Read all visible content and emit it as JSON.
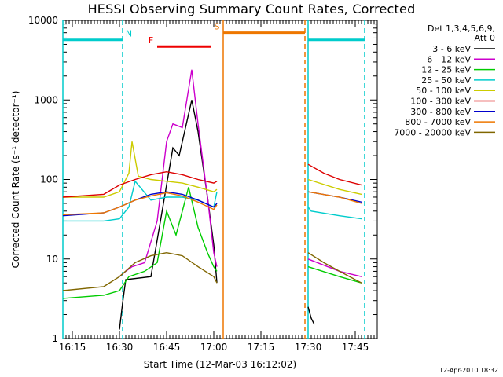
{
  "chart_data": {
    "type": "line",
    "title": "HESSI Observing Summary Count Rates, Corrected",
    "xlabel": "Start Time (12-Mar-03 16:12:02)",
    "ylabel": "Corrected Count Rate (s⁻¹ detector⁻¹)",
    "y_scale": "log",
    "ylim": [
      1,
      10000
    ],
    "xlim": [
      "16:12",
      "17:52"
    ],
    "x_ticks": [
      "16:15",
      "16:30",
      "16:45",
      "17:00",
      "17:15",
      "17:30",
      "17:45"
    ],
    "y_ticks": [
      "1",
      "10",
      "100",
      "1000",
      "10000"
    ],
    "grid": false,
    "legend_header": [
      "Det 1,3,4,5,6,9,",
      "Att 0"
    ],
    "legend_position": "top-right",
    "series": [
      {
        "name": "3 - 6 keV",
        "color": "#000000",
        "x": [
          "16:30",
          "16:31",
          "16:32",
          "16:40",
          "16:44",
          "16:47",
          "16:49",
          "16:53",
          "16:55",
          "16:58",
          "17:00",
          "17:01",
          "17:30",
          "17:31",
          "17:32"
        ],
        "y": [
          1.3,
          2.8,
          5.5,
          6,
          50,
          250,
          200,
          1000,
          400,
          60,
          15,
          5,
          2.5,
          1.8,
          1.5
        ]
      },
      {
        "name": "6 - 12 keV",
        "color": "#cc00cc",
        "x": [
          "16:30",
          "16:32",
          "16:34",
          "16:38",
          "16:42",
          "16:45",
          "16:47",
          "16:50",
          "16:53",
          "16:55",
          "16:58",
          "17:00",
          "17:01",
          "17:30",
          "17:40",
          "17:47"
        ],
        "y": [
          6,
          7,
          8,
          9,
          30,
          300,
          500,
          450,
          2400,
          500,
          60,
          12,
          8,
          10,
          7,
          6
        ]
      },
      {
        "name": "12 - 25 keV",
        "color": "#00cc00",
        "x": [
          "16:12",
          "16:25",
          "16:30",
          "16:33",
          "16:38",
          "16:42",
          "16:45",
          "16:48",
          "16:50",
          "16:52",
          "16:55",
          "16:58",
          "17:00",
          "17:01",
          "17:30",
          "17:40",
          "17:47"
        ],
        "y": [
          3.2,
          3.5,
          4,
          6,
          7,
          9,
          40,
          20,
          40,
          80,
          25,
          12,
          8,
          7,
          8,
          6,
          5
        ]
      },
      {
        "name": "25 - 50 keV",
        "color": "#00cccc",
        "x": [
          "16:12",
          "16:25",
          "16:30",
          "16:33",
          "16:35",
          "16:40",
          "16:45",
          "16:50",
          "16:55",
          "17:00",
          "17:01",
          "17:30",
          "17:31",
          "17:40",
          "17:47"
        ],
        "y": [
          30,
          30,
          32,
          45,
          95,
          55,
          60,
          60,
          55,
          45,
          70,
          45,
          40,
          35,
          32
        ]
      },
      {
        "name": "50 - 100 keV",
        "color": "#cccc00",
        "x": [
          "16:12",
          "16:25",
          "16:30",
          "16:33",
          "16:34",
          "16:36",
          "16:40",
          "16:45",
          "16:50",
          "16:55",
          "17:00",
          "17:01",
          "17:30",
          "17:40",
          "17:47"
        ],
        "y": [
          60,
          60,
          70,
          120,
          300,
          110,
          100,
          95,
          90,
          80,
          70,
          75,
          100,
          75,
          65
        ]
      },
      {
        "name": "100 - 300 keV",
        "color": "#dd0000",
        "x": [
          "16:12",
          "16:25",
          "16:30",
          "16:35",
          "16:40",
          "16:45",
          "16:50",
          "16:55",
          "17:00",
          "17:01",
          "17:30",
          "17:35",
          "17:40",
          "17:47"
        ],
        "y": [
          60,
          65,
          85,
          100,
          115,
          125,
          115,
          100,
          90,
          95,
          155,
          120,
          100,
          85
        ]
      },
      {
        "name": "300 - 800 keV",
        "color": "#0000cc",
        "x": [
          "16:12",
          "16:25",
          "16:30",
          "16:35",
          "16:40",
          "16:45",
          "16:50",
          "16:55",
          "17:00",
          "17:01",
          "17:30",
          "17:40",
          "17:47"
        ],
        "y": [
          35,
          38,
          45,
          55,
          65,
          70,
          65,
          55,
          45,
          50,
          70,
          60,
          52
        ]
      },
      {
        "name": "800 - 7000 keV",
        "color": "#ee7700",
        "x": [
          "16:12",
          "16:25",
          "16:30",
          "16:35",
          "16:40",
          "16:45",
          "16:50",
          "16:55",
          "17:00",
          "17:01",
          "17:30",
          "17:40",
          "17:47"
        ],
        "y": [
          36,
          38,
          45,
          55,
          62,
          68,
          62,
          52,
          42,
          48,
          70,
          60,
          50
        ]
      },
      {
        "name": "7000 - 20000 keV",
        "color": "#806600",
        "x": [
          "16:12",
          "16:25",
          "16:30",
          "16:35",
          "16:40",
          "16:45",
          "16:50",
          "16:55",
          "17:00",
          "17:01",
          "17:30",
          "17:35",
          "17:40",
          "17:47"
        ],
        "y": [
          4,
          4.5,
          6,
          9,
          11,
          12,
          11,
          8,
          6,
          5,
          12,
          9,
          7,
          5
        ]
      }
    ],
    "annotations": [
      {
        "label": "N",
        "color": "#00cccc",
        "type": "segments",
        "segments": [
          [
            "16:12",
            "16:31"
          ],
          [
            "17:30",
            "17:48"
          ]
        ],
        "y": 5700
      },
      {
        "label": "F",
        "color": "#ee0000",
        "type": "segment",
        "segments": [
          [
            "16:42",
            "16:59"
          ]
        ],
        "y": 4700
      },
      {
        "label": "S",
        "color": "#ee7700",
        "type": "segment",
        "segments": [
          [
            "17:03",
            "17:29"
          ]
        ],
        "y": 7000
      }
    ],
    "vertical_lines": [
      {
        "color": "#00cccc",
        "style": "solid",
        "x": "16:12"
      },
      {
        "color": "#00cccc",
        "style": "dashed",
        "x": "16:31"
      },
      {
        "color": "#ee7700",
        "style": "solid",
        "x": "17:03"
      },
      {
        "color": "#ee7700",
        "style": "dashed",
        "x": "17:29"
      },
      {
        "color": "#00cccc",
        "style": "solid",
        "x": "17:30"
      },
      {
        "color": "#00cccc",
        "style": "dashed",
        "x": "17:48"
      }
    ]
  },
  "footer": {
    "timestamp": "12-Apr-2010 18:32"
  }
}
